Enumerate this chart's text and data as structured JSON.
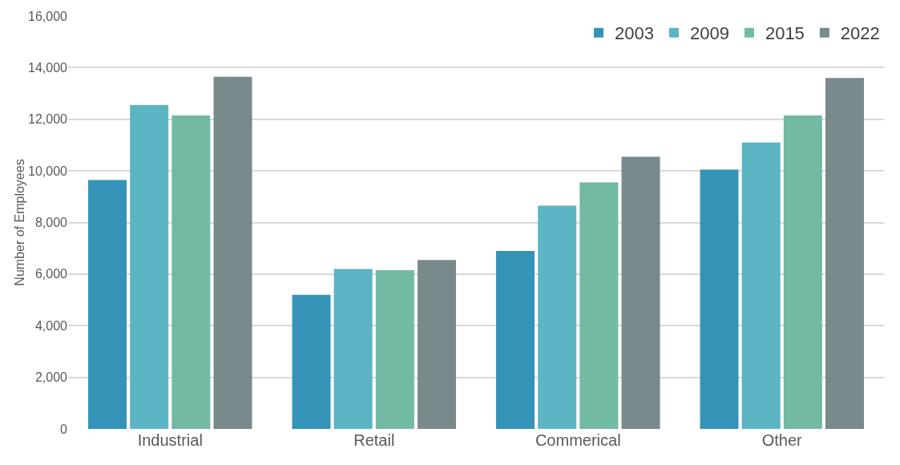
{
  "chart_data": {
    "type": "bar",
    "ylabel": "Number of Employees",
    "categories": [
      "Industrial",
      "Retail",
      "Commerical",
      "Other"
    ],
    "series": [
      {
        "name": "2003",
        "color": "#3593b8",
        "values": [
          9650,
          5200,
          6900,
          10050
        ]
      },
      {
        "name": "2009",
        "color": "#5bb5c2",
        "values": [
          12550,
          6200,
          8650,
          11100
        ]
      },
      {
        "name": "2015",
        "color": "#72baa4",
        "values": [
          12150,
          6150,
          9550,
          12150
        ]
      },
      {
        "name": "2022",
        "color": "#788a8c",
        "values": [
          13650,
          6550,
          10550,
          13600
        ]
      }
    ],
    "ylim": [
      0,
      16000
    ],
    "yticks": [
      {
        "value": 0,
        "label": "0"
      },
      {
        "value": 2000,
        "label": "2,000"
      },
      {
        "value": 4000,
        "label": "4,000"
      },
      {
        "value": 6000,
        "label": "6,000"
      },
      {
        "value": 8000,
        "label": "8,000"
      },
      {
        "value": 10000,
        "label": "10,000"
      },
      {
        "value": 12000,
        "label": "12,000"
      },
      {
        "value": 14000,
        "label": "14,000"
      },
      {
        "value": 16000,
        "label": "16,000"
      }
    ],
    "grid": "y",
    "legend": "top right"
  }
}
